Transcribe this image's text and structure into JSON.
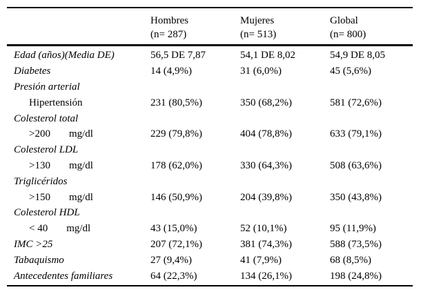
{
  "colors": {
    "text": "#000000",
    "rule": "#000000",
    "background": "#ffffff"
  },
  "table": {
    "columns": [
      {
        "label": "Hombres",
        "sub": "(n= 287)"
      },
      {
        "label": "Mujeres",
        "sub": "(n= 513)"
      },
      {
        "label": "Global",
        "sub": "(n= 800)"
      }
    ],
    "rows": [
      {
        "label": "Edad (años)(Media DE)",
        "italic": true,
        "indent": false,
        "values": [
          "56,5 DE 7,87",
          "54,1 DE 8,02",
          "54,9 DE 8,05"
        ]
      },
      {
        "label": "Diabetes",
        "italic": true,
        "indent": false,
        "values": [
          "14 (4,9%)",
          "31 (6,0%)",
          "45 (5,6%)"
        ]
      },
      {
        "label": "Presión arterial",
        "italic": true,
        "indent": false,
        "values": [
          "",
          "",
          ""
        ]
      },
      {
        "label": "Hipertensión",
        "italic": false,
        "indent": true,
        "values": [
          "231 (80,5%)",
          "350 (68,2%)",
          "581 (72,6%)"
        ]
      },
      {
        "label": "Colesterol total",
        "italic": true,
        "indent": false,
        "values": [
          "",
          "",
          ""
        ]
      },
      {
        "label": ">200",
        "unit": "mg/dl",
        "italic": false,
        "indent": true,
        "values": [
          "229 (79,8%)",
          "404 (78,8%)",
          "633 (79,1%)"
        ]
      },
      {
        "label": "Colesterol LDL",
        "italic": true,
        "indent": false,
        "values": [
          "",
          "",
          ""
        ]
      },
      {
        "label": ">130",
        "unit": "mg/dl",
        "italic": false,
        "indent": true,
        "values": [
          "178 (62,0%)",
          "330 (64,3%)",
          "508 (63,6%)"
        ]
      },
      {
        "label": "Triglicéridos",
        "italic": true,
        "indent": false,
        "values": [
          "",
          "",
          ""
        ]
      },
      {
        "label": ">150",
        "unit": "mg/dl",
        "italic": false,
        "indent": true,
        "values": [
          "146 (50,9%)",
          "204 (39,8%)",
          "350 (43,8%)"
        ]
      },
      {
        "label": "Colesterol HDL",
        "italic": true,
        "indent": false,
        "values": [
          "",
          "",
          ""
        ]
      },
      {
        "label": "< 40",
        "unit": "mg/dl",
        "italic": false,
        "indent": true,
        "values": [
          "43 (15,0%)",
          "52 (10,1%)",
          "95 (11,9%)"
        ]
      },
      {
        "label": "IMC >25",
        "italic": true,
        "indent": false,
        "values": [
          "207 (72,1%)",
          "381 (74,3%)",
          "588 (73,5%)"
        ]
      },
      {
        "label": "Tabaquismo",
        "italic": true,
        "indent": false,
        "values": [
          "27 (9,4%)",
          "41 (7,9%)",
          "68 (8,5%)"
        ]
      },
      {
        "label": "Antecedentes familiares",
        "italic": true,
        "indent": false,
        "values": [
          "64 (22,3%)",
          "134 (26,1%)",
          "198 (24,8%)"
        ]
      }
    ]
  }
}
